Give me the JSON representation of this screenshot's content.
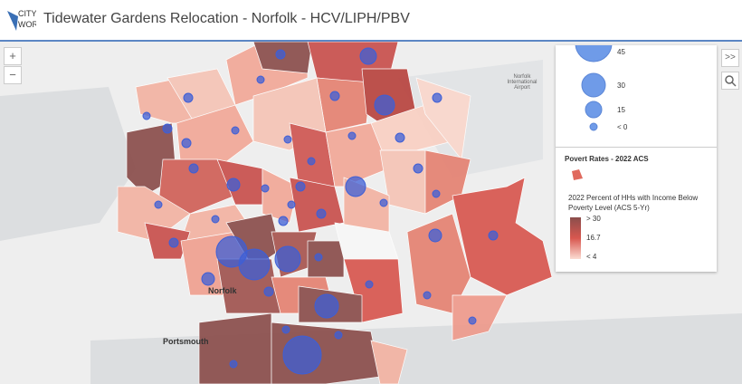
{
  "header": {
    "logo": [
      "CITY",
      "WORK"
    ],
    "title": "Tidewater Gardens Relocation - Norfolk - HCV/LIPH/PBV"
  },
  "map": {
    "labels": [
      "Norfolk",
      "Portsmouth",
      "Norfolk International Airport"
    ],
    "zoom_in": "+",
    "zoom_out": "−",
    "expand": ">>"
  },
  "legend": {
    "size_labels": [
      "45",
      "30",
      "15",
      "< 0"
    ],
    "layer_title": "Povert Rates - 2022 ACS",
    "field_title": "2022 Percent of HHs with Income Below Poverty Level (ACS 5-Yr)",
    "color_labels": [
      "> 30",
      "16.7",
      "< 4"
    ]
  }
}
